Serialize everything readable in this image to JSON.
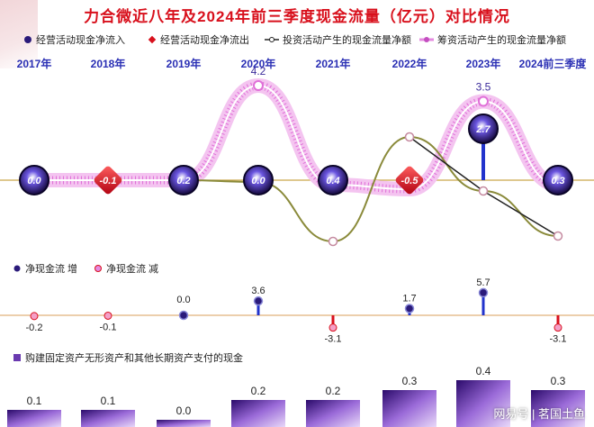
{
  "title": "力合微近八年及2024年前三季度现金流量（亿元）对比情况",
  "legend": {
    "op_in": "经营活动现金净流入",
    "op_out": "经营活动现金净流出",
    "invest": "投资活动产生的现金流量净额",
    "finance": "筹资活动产生的现金流量净额"
  },
  "legend2": {
    "increase": "净现金流  增",
    "decrease": "净现金流  减"
  },
  "legend3": {
    "capex": "购建固定资产无形资产和其他长期资产支付的现金"
  },
  "watermark": "网易号 | 茗国土鱼",
  "colors": {
    "title": "#d8101c",
    "op_in": "#2a1a7a",
    "op_out": "#d8101c",
    "invest": "#8a8a3a",
    "finance": "#e58ae0",
    "net_up": "#2233cc",
    "net_down": "#d8101c",
    "capex": "#6a3ab0"
  },
  "chart_data": [
    {
      "type": "line",
      "categories": [
        "2017年",
        "2018年",
        "2019年",
        "2020年",
        "2021年",
        "2022年",
        "2023年",
        "2024前三季度"
      ],
      "series": [
        {
          "name": "经营活动现金净流入/净流出",
          "values": [
            0.0,
            -0.1,
            0.2,
            0.0,
            0.4,
            -0.5,
            2.7,
            0.3
          ]
        },
        {
          "name": "投资活动产生的现金流量净额",
          "values": [
            null,
            null,
            null,
            null,
            null,
            null,
            null,
            null
          ]
        },
        {
          "name": "筹资活动产生的现金流量净额",
          "values": [
            null,
            null,
            null,
            4.2,
            null,
            null,
            3.5,
            null
          ]
        }
      ]
    },
    {
      "type": "bar",
      "categories": [
        "2017年",
        "2018年",
        "2019年",
        "2020年",
        "2021年",
        "2022年",
        "2023年",
        "2024前三季度"
      ],
      "series": [
        {
          "name": "净现金流",
          "values": [
            -0.2,
            -0.1,
            0.0,
            3.6,
            -3.1,
            1.7,
            5.7,
            -3.1
          ]
        }
      ]
    },
    {
      "type": "bar",
      "categories": [
        "2017年",
        "2018年",
        "2019年",
        "2020年",
        "2021年",
        "2022年",
        "2023年",
        "2024前三季度"
      ],
      "series": [
        {
          "name": "购建固定资产无形资产和其他长期资产支付的现金",
          "values": [
            0.1,
            0.1,
            0.0,
            0.2,
            0.2,
            0.3,
            0.4,
            0.3
          ]
        }
      ]
    }
  ]
}
